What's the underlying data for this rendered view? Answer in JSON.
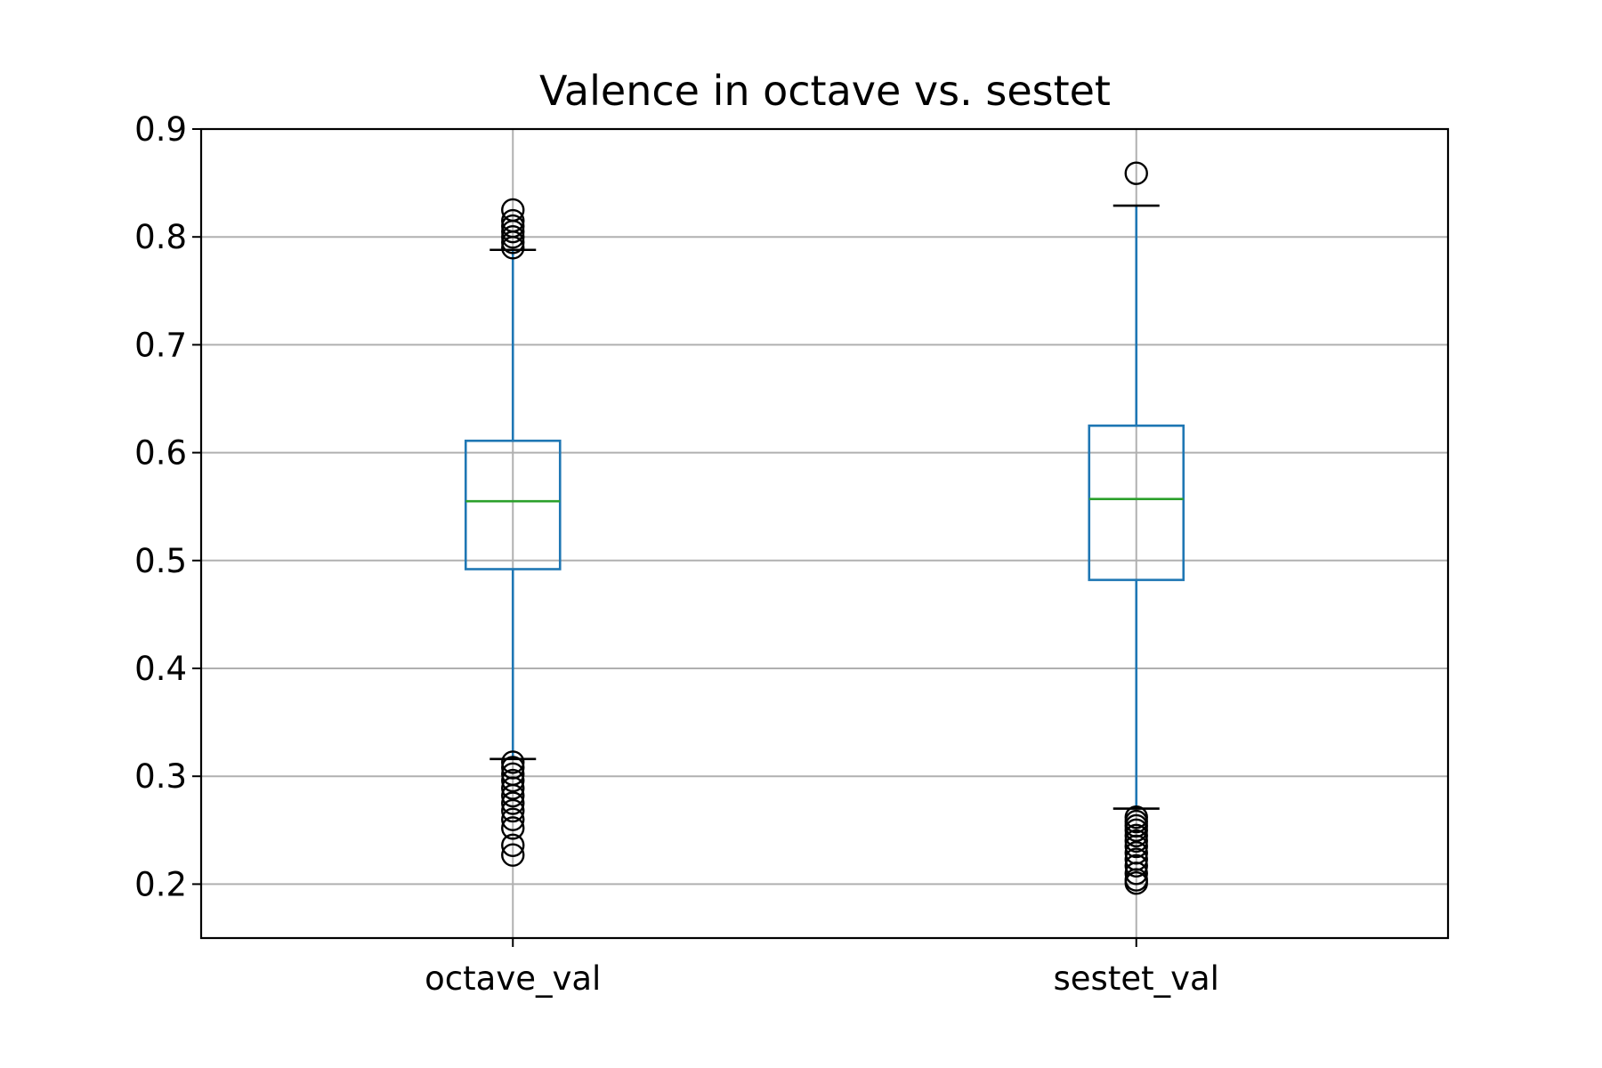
{
  "chart_data": {
    "type": "box",
    "title": "Valence in octave vs. sestet",
    "xlabel": "",
    "ylabel": "",
    "ylim": [
      0.15,
      0.9
    ],
    "yticks": [
      0.2,
      0.3,
      0.4,
      0.5,
      0.6,
      0.7,
      0.8,
      0.9
    ],
    "ytick_labels": [
      "0.2",
      "0.3",
      "0.4",
      "0.5",
      "0.6",
      "0.7",
      "0.8",
      "0.9"
    ],
    "grid": true,
    "categories": [
      "octave_val",
      "sestet_val"
    ],
    "boxes": [
      {
        "label": "octave_val",
        "whisker_low": 0.316,
        "q1": 0.492,
        "median": 0.555,
        "q3": 0.611,
        "whisker_high": 0.788,
        "outliers": [
          0.79,
          0.795,
          0.8,
          0.805,
          0.81,
          0.815,
          0.825,
          0.313,
          0.308,
          0.302,
          0.296,
          0.289,
          0.282,
          0.275,
          0.268,
          0.26,
          0.252,
          0.236,
          0.227
        ]
      },
      {
        "label": "sestet_val",
        "whisker_low": 0.27,
        "q1": 0.482,
        "median": 0.557,
        "q3": 0.625,
        "whisker_high": 0.829,
        "outliers": [
          0.859,
          0.262,
          0.258,
          0.254,
          0.25,
          0.245,
          0.24,
          0.235,
          0.229,
          0.223,
          0.217,
          0.21,
          0.204,
          0.201
        ]
      }
    ],
    "colors": {
      "box": "#1f77b4",
      "median": "#2ca02c",
      "caps": "#000000",
      "outlier": "#000000",
      "grid": "#b0b0b0"
    }
  }
}
